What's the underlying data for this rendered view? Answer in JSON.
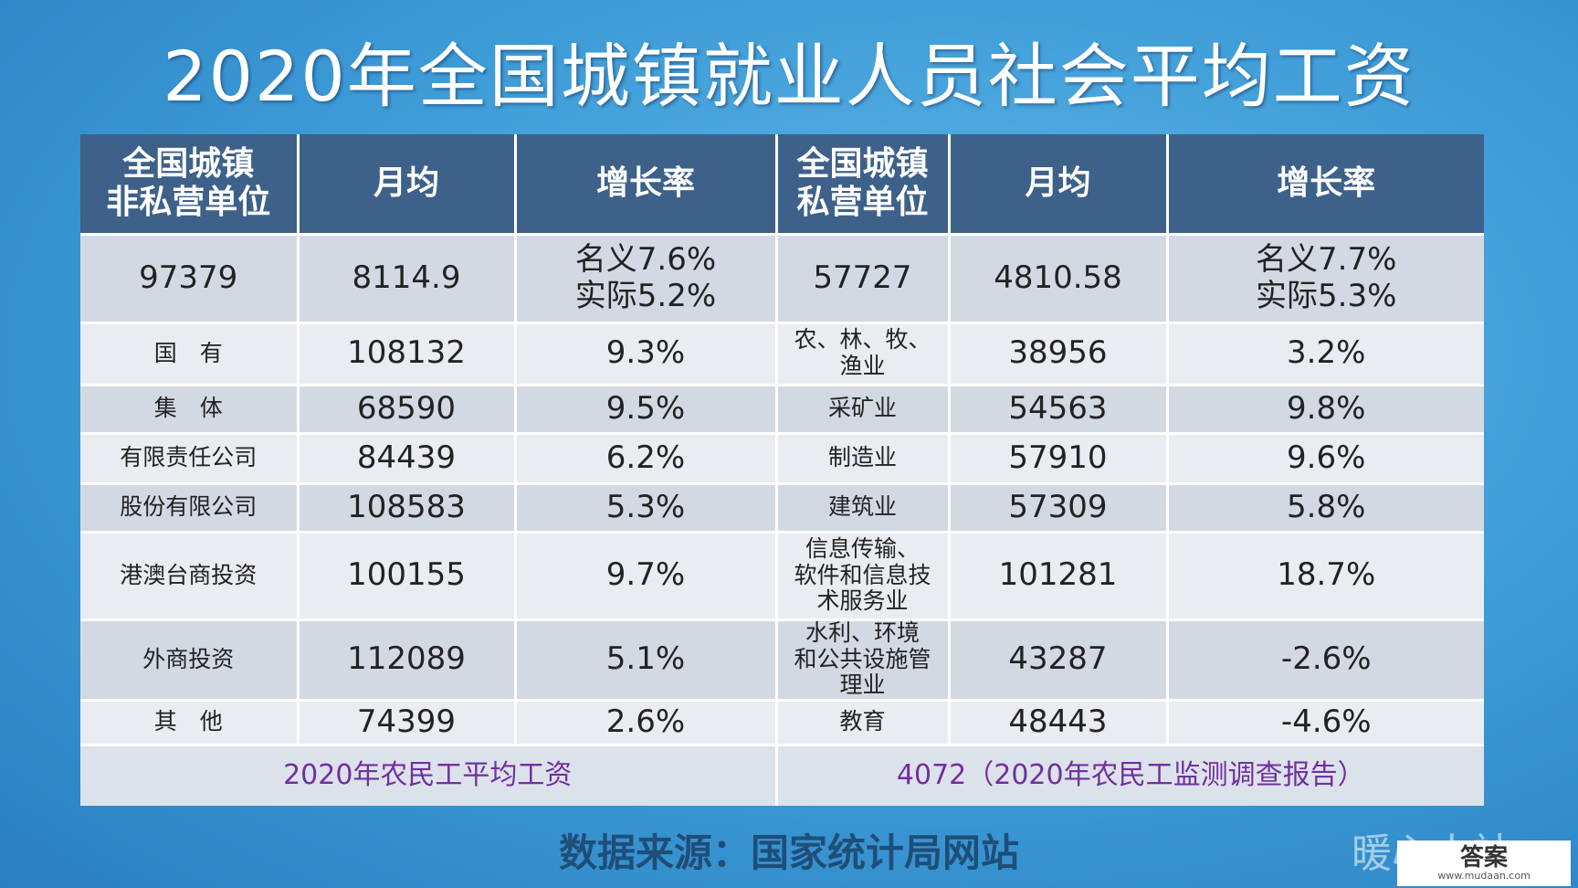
{
  "title": "2020年全国城镇就业人员社会平均工资",
  "table": {
    "header": [
      "全国城镇\n非私营单位",
      "月均",
      "增长率",
      "全国城镇\n私营单位",
      "月均",
      "增长率"
    ],
    "rows": [
      [
        "97379",
        "8114.9",
        "名义7.6%\n实际5.2%",
        "57727",
        "4810.58",
        "名义7.7%\n实际5.3%"
      ],
      [
        "国　有",
        "108132",
        "9.3%",
        "农、林、牧、\n渔业",
        "38956",
        "3.2%"
      ],
      [
        "集　体",
        "68590",
        "9.5%",
        "采矿业",
        "54563",
        "9.8%"
      ],
      [
        "有限责任公司",
        "84439",
        "6.2%",
        "制造业",
        "57910",
        "9.6%"
      ],
      [
        "股份有限公司",
        "108583",
        "5.3%",
        "建筑业",
        "57309",
        "5.8%"
      ],
      [
        "港澳台商投资",
        "100155",
        "9.7%",
        "信息传输、\n软件和信息技\n术服务业",
        "101281",
        "18.7%"
      ],
      [
        "外商投资",
        "112089",
        "5.1%",
        "水利、环境\n和公共设施管\n理业",
        "43287",
        "-2.6%"
      ],
      [
        "其　他",
        "74399",
        "2.6%",
        "教育",
        "48443",
        "-4.6%"
      ]
    ],
    "footer": [
      "2020年农民工平均工资",
      "4072（2020年农民工监测调查报告）"
    ]
  },
  "source": "数据来源：国家统计局网站",
  "watermark": "暖心人社",
  "logo": {
    "name": "答案",
    "url": "www.mudaan.com"
  }
}
